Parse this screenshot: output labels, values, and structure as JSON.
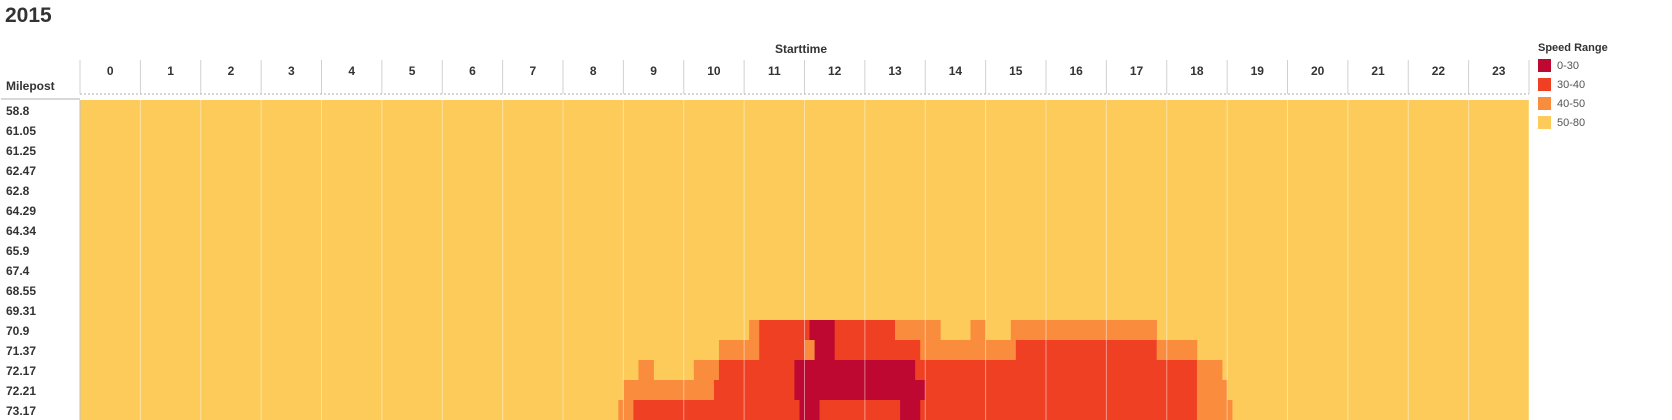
{
  "chart_data": {
    "type": "heatmap",
    "title": "2015",
    "xlabel": "Starttime",
    "ylabel": "Milepost",
    "x_ticks": [
      "0",
      "1",
      "2",
      "3",
      "4",
      "5",
      "6",
      "7",
      "8",
      "9",
      "10",
      "11",
      "12",
      "13",
      "14",
      "15",
      "16",
      "17",
      "18",
      "19",
      "20",
      "21",
      "22",
      "23"
    ],
    "y_categories": [
      "58.8",
      "61.05",
      "61.25",
      "62.47",
      "62.8",
      "64.29",
      "64.34",
      "65.9",
      "67.4",
      "68.55",
      "69.31",
      "70.9",
      "71.37",
      "72.17",
      "72.21",
      "73.17"
    ],
    "x_resolution": "5-minute intervals (12 per hour), x = starttime in hours",
    "legend": {
      "title": "Speed Range",
      "placement": "right",
      "items": [
        {
          "label": "0-30",
          "color": "#bf0831"
        },
        {
          "label": "30-40",
          "color": "#ef4023"
        },
        {
          "label": "40-50",
          "color": "#fa8c3e"
        },
        {
          "label": "50-80",
          "color": "#fccb5a"
        }
      ]
    },
    "default_range": "50-80",
    "cells": [
      {
        "milepost": "70.9",
        "from": 11.083,
        "to": 11.25,
        "range": "40-50"
      },
      {
        "milepost": "70.9",
        "from": 11.25,
        "to": 12.083,
        "range": "30-40"
      },
      {
        "milepost": "70.9",
        "from": 12.083,
        "to": 12.5,
        "range": "0-30"
      },
      {
        "milepost": "70.9",
        "from": 12.5,
        "to": 13.5,
        "range": "30-40"
      },
      {
        "milepost": "70.9",
        "from": 13.5,
        "to": 14.25,
        "range": "40-50"
      },
      {
        "milepost": "70.9",
        "from": 14.75,
        "to": 15.0,
        "range": "40-50"
      },
      {
        "milepost": "70.9",
        "from": 15.417,
        "to": 17.833,
        "range": "40-50"
      },
      {
        "milepost": "71.37",
        "from": 10.583,
        "to": 11.0,
        "range": "40-50"
      },
      {
        "milepost": "71.37",
        "from": 11.0,
        "to": 11.25,
        "range": "40-50"
      },
      {
        "milepost": "71.37",
        "from": 11.25,
        "to": 12.0,
        "range": "30-40"
      },
      {
        "milepost": "71.37",
        "from": 12.0,
        "to": 12.167,
        "range": "40-50"
      },
      {
        "milepost": "71.37",
        "from": 12.167,
        "to": 12.5,
        "range": "0-30"
      },
      {
        "milepost": "71.37",
        "from": 12.5,
        "to": 13.917,
        "range": "30-40"
      },
      {
        "milepost": "71.37",
        "from": 13.917,
        "to": 15.0,
        "range": "40-50"
      },
      {
        "milepost": "71.37",
        "from": 15.0,
        "to": 15.5,
        "range": "40-50"
      },
      {
        "milepost": "71.37",
        "from": 15.5,
        "to": 17.833,
        "range": "30-40"
      },
      {
        "milepost": "71.37",
        "from": 17.833,
        "to": 18.5,
        "range": "40-50"
      },
      {
        "milepost": "72.17",
        "from": 9.25,
        "to": 9.5,
        "range": "40-50"
      },
      {
        "milepost": "72.17",
        "from": 10.167,
        "to": 10.583,
        "range": "40-50"
      },
      {
        "milepost": "72.17",
        "from": 10.583,
        "to": 11.083,
        "range": "30-40"
      },
      {
        "milepost": "72.17",
        "from": 11.083,
        "to": 11.833,
        "range": "30-40"
      },
      {
        "milepost": "72.17",
        "from": 11.833,
        "to": 13.833,
        "range": "0-30"
      },
      {
        "milepost": "72.17",
        "from": 13.833,
        "to": 18.5,
        "range": "30-40"
      },
      {
        "milepost": "72.17",
        "from": 18.5,
        "to": 18.917,
        "range": "40-50"
      },
      {
        "milepost": "72.21",
        "from": 9.0,
        "to": 9.25,
        "range": "40-50"
      },
      {
        "milepost": "72.21",
        "from": 9.25,
        "to": 9.5,
        "range": "40-50"
      },
      {
        "milepost": "72.21",
        "from": 9.5,
        "to": 10.0,
        "range": "40-50"
      },
      {
        "milepost": "72.21",
        "from": 10.0,
        "to": 10.5,
        "range": "40-50"
      },
      {
        "milepost": "72.21",
        "from": 10.5,
        "to": 11.833,
        "range": "30-40"
      },
      {
        "milepost": "72.21",
        "from": 11.833,
        "to": 14.0,
        "range": "0-30"
      },
      {
        "milepost": "72.21",
        "from": 14.0,
        "to": 18.5,
        "range": "30-40"
      },
      {
        "milepost": "72.21",
        "from": 18.5,
        "to": 19.0,
        "range": "40-50"
      },
      {
        "milepost": "73.17",
        "from": 8.917,
        "to": 9.167,
        "range": "40-50"
      },
      {
        "milepost": "73.17",
        "from": 9.167,
        "to": 11.083,
        "range": "30-40"
      },
      {
        "milepost": "73.17",
        "from": 11.083,
        "to": 11.917,
        "range": "30-40"
      },
      {
        "milepost": "73.17",
        "from": 11.917,
        "to": 12.25,
        "range": "0-30"
      },
      {
        "milepost": "73.17",
        "from": 12.25,
        "to": 13.583,
        "range": "30-40"
      },
      {
        "milepost": "73.17",
        "from": 13.583,
        "to": 13.917,
        "range": "0-30"
      },
      {
        "milepost": "73.17",
        "from": 13.917,
        "to": 18.5,
        "range": "30-40"
      },
      {
        "milepost": "73.17",
        "from": 18.5,
        "to": 19.083,
        "range": "40-50"
      }
    ]
  }
}
